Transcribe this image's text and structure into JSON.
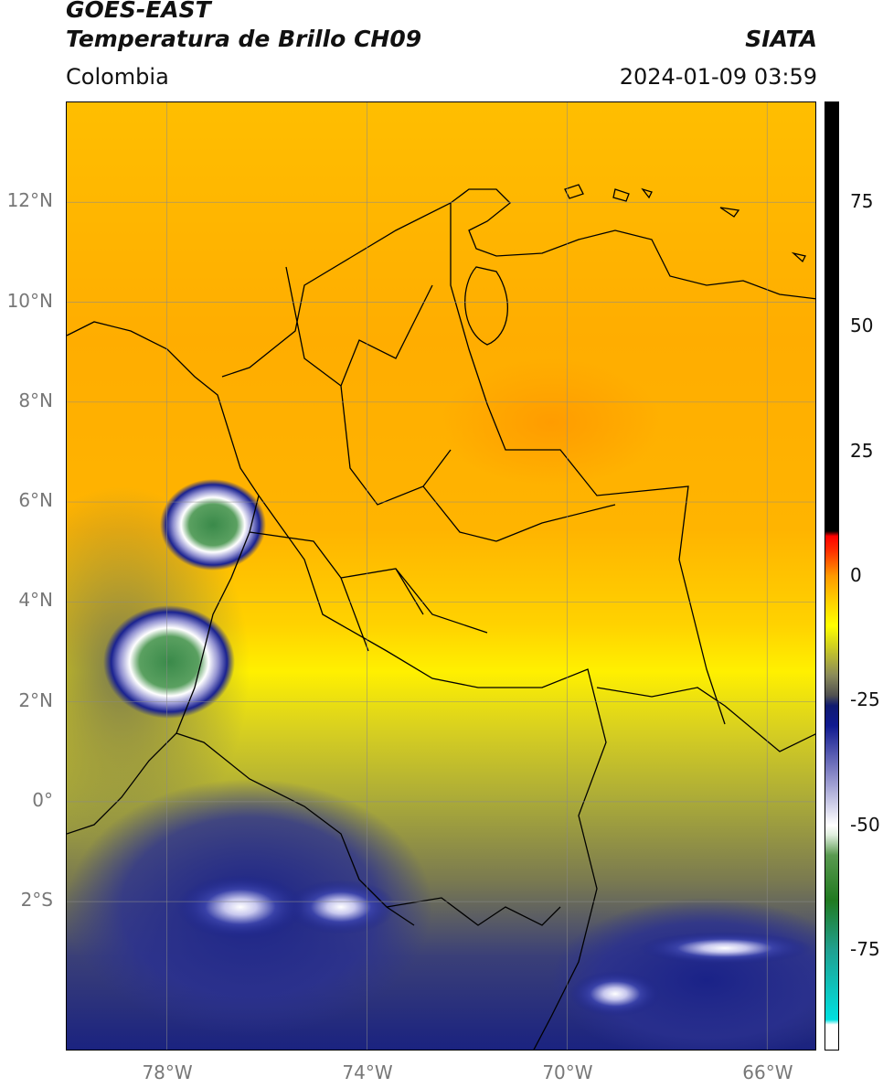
{
  "header": {
    "satellite": "GOES-EAST",
    "product": "Temperatura de Brillo CH09",
    "region": "Colombia",
    "organization": "SIATA",
    "datetime": "2024-01-09 03:59"
  },
  "map": {
    "extent_lon": [
      -80.0,
      -65.0
    ],
    "extent_lat": [
      -5.0,
      14.0
    ],
    "lat_ticks": [
      {
        "lat": 12,
        "label": "12°N"
      },
      {
        "lat": 10,
        "label": "10°N"
      },
      {
        "lat": 8,
        "label": "8°N"
      },
      {
        "lat": 6,
        "label": "6°N"
      },
      {
        "lat": 4,
        "label": "4°N"
      },
      {
        "lat": 2,
        "label": "2°N"
      },
      {
        "lat": 0,
        "label": "0°"
      },
      {
        "lat": -2,
        "label": "2°S"
      }
    ],
    "lon_ticks": [
      {
        "lon": -78,
        "label": "78°W"
      },
      {
        "lon": -74,
        "label": "74°W"
      },
      {
        "lon": -70,
        "label": "70°W"
      },
      {
        "lon": -66,
        "label": "66°W"
      }
    ],
    "grid": true
  },
  "colorbar": {
    "range": [
      -95,
      95
    ],
    "ticks": [
      {
        "value": 75,
        "label": "75"
      },
      {
        "value": 50,
        "label": "50"
      },
      {
        "value": 25,
        "label": "25"
      },
      {
        "value": 0,
        "label": "0"
      },
      {
        "value": -25,
        "label": "-25"
      },
      {
        "value": -50,
        "label": "-50"
      },
      {
        "value": -75,
        "label": "-75"
      }
    ],
    "stops": [
      {
        "value": -95,
        "color": "#ffffff"
      },
      {
        "value": -90,
        "color": "#ffffff"
      },
      {
        "value": -89,
        "color": "#00e0e0"
      },
      {
        "value": -75,
        "color": "#20a090"
      },
      {
        "value": -65,
        "color": "#207a20"
      },
      {
        "value": -56,
        "color": "#5a9a50"
      },
      {
        "value": -52,
        "color": "#dfeedd"
      },
      {
        "value": -50,
        "color": "#ffffff"
      },
      {
        "value": -40,
        "color": "#8a8ac8"
      },
      {
        "value": -30,
        "color": "#101a90"
      },
      {
        "value": -26,
        "color": "#101a70"
      },
      {
        "value": -24,
        "color": "#505050"
      },
      {
        "value": -20,
        "color": "#8a8a5a"
      },
      {
        "value": -14,
        "color": "#d0d020"
      },
      {
        "value": -10,
        "color": "#ffff00"
      },
      {
        "value": -5,
        "color": "#ffd000"
      },
      {
        "value": 0,
        "color": "#ff9a00"
      },
      {
        "value": 5,
        "color": "#ff3000"
      },
      {
        "value": 8,
        "color": "#ff0000"
      },
      {
        "value": 9,
        "color": "#000000"
      },
      {
        "value": 95,
        "color": "#000000"
      }
    ]
  },
  "colors": {
    "warm_background": "#ffc000",
    "cold_cloud": "#1a237e",
    "coldest_core": "#2e8b57"
  }
}
